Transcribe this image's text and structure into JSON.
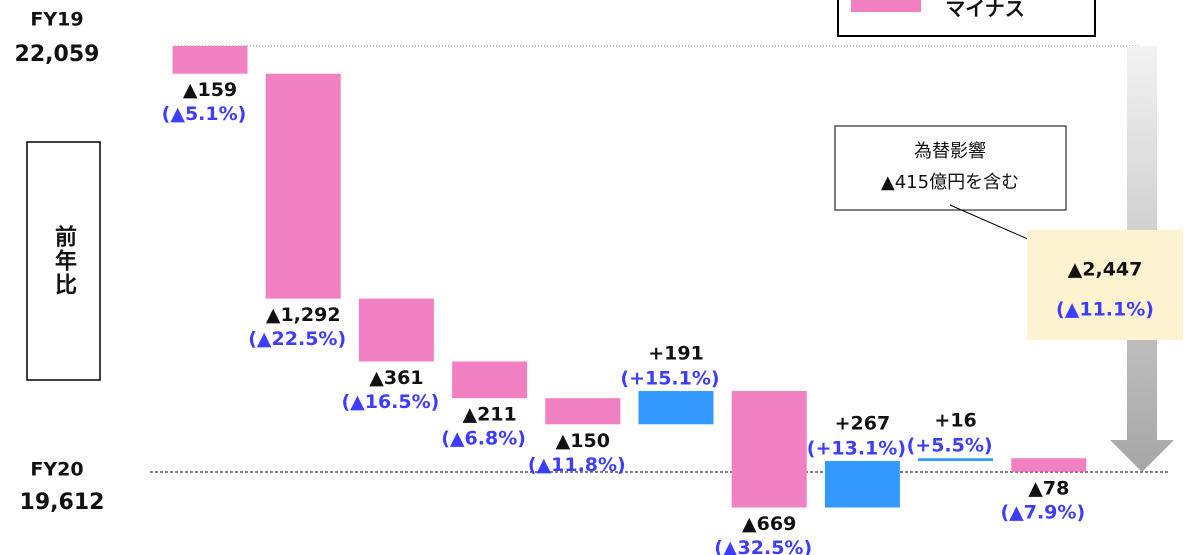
{
  "chart_data": {
    "type": "waterfall",
    "start": {
      "label": "FY19",
      "value": 22059,
      "value_label": "22,059"
    },
    "end": {
      "label": "FY20",
      "value": 19612,
      "value_label": "19,612"
    },
    "values": [
      -159,
      -1292,
      -361,
      -211,
      -150,
      191,
      -669,
      267,
      16,
      -78
    ],
    "value_labels": [
      "▲159",
      "▲1,292",
      "▲361",
      "▲211",
      "▲150",
      "+191",
      "▲669",
      "+267",
      "+16",
      "▲78"
    ],
    "change_rates": [
      -5.1,
      -22.5,
      -16.5,
      -6.8,
      -11.8,
      15.1,
      -32.5,
      13.1,
      5.5,
      -7.9
    ],
    "change_rate_labels": [
      "(▲5.1%)",
      "(▲22.5%)",
      "(▲16.5%)",
      "(▲6.8%)",
      "(▲11.8%)",
      "(+15.1%)",
      "(▲32.5%)",
      "(+13.1%)",
      "(+5.5%)",
      "(▲7.9%)"
    ],
    "total": {
      "value": -2447,
      "value_label": "▲2,447",
      "rate": -11.1,
      "rate_label": "(▲11.1%)"
    },
    "annotation": [
      "為替影響",
      "▲415億円を含む"
    ],
    "side_label": "前年比",
    "legend": [
      {
        "name": "マイナス",
        "color": "#f080c2"
      }
    ],
    "colors": {
      "negative": "#f080c2",
      "positive": "#3399ff",
      "rate_text": "#3d3dff"
    }
  }
}
